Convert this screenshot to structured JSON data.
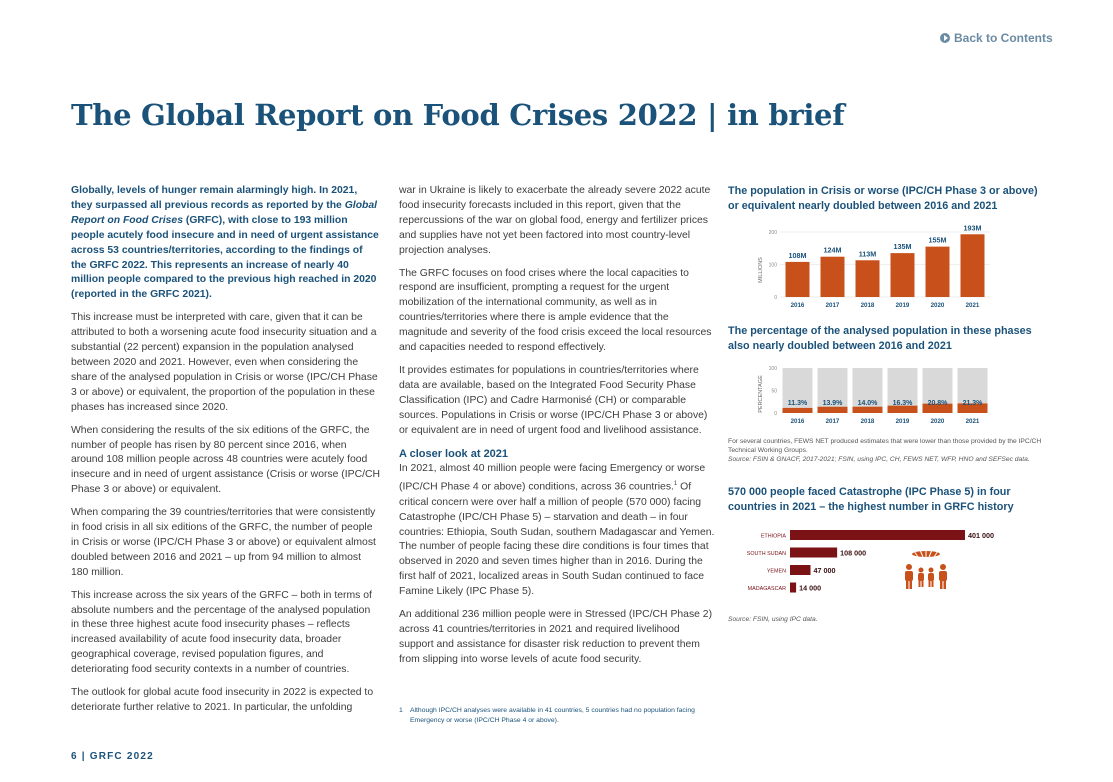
{
  "header": {
    "back_link": "Back to Contents"
  },
  "title": "The Global Report on Food Crises 2022 | in brief",
  "col1": {
    "lead_part1": "Globally, levels of hunger remain alarmingly high. In 2021, they surpassed all previous records as reported by the ",
    "lead_italic": "Global Report on Food Crises",
    "lead_part2": " (GRFC), with close to 193 million people acutely food insecure and in need of urgent assistance across 53 countries/territories, according to the findings of the GRFC 2022. This represents an increase of nearly 40 million people compared to the previous high reached in 2020 (reported in the GRFC 2021).",
    "p2": "This increase must be interpreted with care, given that it can be attributed to both a worsening acute food insecurity situation and a substantial (22 percent) expansion in the population analysed between 2020 and 2021. However, even when considering the share of the analysed population in Crisis or worse (IPC/CH Phase 3 or above) or equivalent, the proportion of the population in these phases has increased since 2020.",
    "p3": "When considering the results of the six editions of the GRFC, the number of people has risen by 80 percent since 2016, when around 108 million people across 48 countries were acutely food insecure and in need of urgent assistance (Crisis or worse (IPC/CH Phase 3 or above) or equivalent.",
    "p4": "When comparing the 39 countries/territories that were consistently in food crisis in all six editions of the GRFC, the number of people in Crisis or worse (IPC/CH Phase 3 or above) or equivalent almost doubled between 2016 and 2021 – up from 94 million to almost 180 million.",
    "p5": "This increase across the six years of the GRFC – both in terms of absolute numbers and the percentage of the analysed population in these three highest acute food insecurity phases – reflects increased availability of acute food insecurity data, broader geographical coverage, revised population figures, and deteriorating food security contexts in a number of countries.",
    "p6": "The outlook for global acute food insecurity in 2022 is expected to deteriorate further relative to 2021. In particular, the unfolding"
  },
  "col2": {
    "p1": "war in Ukraine is likely to exacerbate the already severe 2022 acute food insecurity forecasts included in this report, given that the repercussions of the war on global food, energy and fertilizer prices and supplies have not yet been factored into most country-level projection analyses.",
    "p2": "The GRFC focuses on food crises where the local capacities to respond are insufficient, prompting a request for the urgent mobilization of the international community, as well as in countries/territories where there is ample evidence that the magnitude and severity of the food crisis exceed the local resources and capacities needed to respond effectively.",
    "p3": "It provides estimates for populations in countries/territories where data are available, based on the Integrated Food Security Phase Classification (IPC) and Cadre Harmonisé (CH) or comparable sources. Populations in Crisis or worse (IPC/CH Phase 3 or above) or equivalent are in need of urgent food and livelihood assistance.",
    "subhead": "A closer look at 2021",
    "p4": "In 2021, almost 40 million people were facing Emergency or worse (IPC/CH Phase 4 or above) conditions, across 36 countries.",
    "p4_sup": "1",
    "p4b": " Of critical concern were over half a million of people (570 000) facing Catastrophe (IPC/CH Phase 5) – starvation and death – in four countries: Ethiopia, South Sudan, southern Madagascar and Yemen. The number of people facing these dire conditions is four times that observed in 2020 and seven times higher than in 2016. During the first half of 2021, localized areas in South Sudan continued to face Famine Likely (IPC Phase 5).",
    "p5": "An additional 236 million people were in Stressed (IPC/CH Phase 2) across 41 countries/territories in 2021 and required livelihood support and assistance for disaster risk reduction to prevent them from slipping into worse levels of acute food security."
  },
  "footnote": {
    "num": "1",
    "text": "Although IPC/CH analyses were available in 41 countries, 5 countries had no population facing Emergency or worse (IPC/CH Phase 4 or above)."
  },
  "footer": "6 | GRFC 2022",
  "colors": {
    "orange": "#c8501a",
    "grey": "#d9d9d9",
    "darkred": "#7a1216",
    "blue": "#1b5279"
  },
  "chart_data": [
    {
      "type": "bar",
      "title": "The population in Crisis or worse (IPC/CH Phase 3 or above) or equivalent nearly doubled between 2016 and 2021",
      "categories": [
        "2016",
        "2017",
        "2018",
        "2019",
        "2020",
        "2021"
      ],
      "values": [
        108,
        124,
        113,
        135,
        155,
        193
      ],
      "labels": [
        "108M",
        "124M",
        "113M",
        "135M",
        "155M",
        "193M"
      ],
      "ylabel": "MILLIONS",
      "yticks": [
        "0",
        "100",
        "200"
      ],
      "ylim": [
        0,
        200
      ]
    },
    {
      "type": "bar",
      "title": "The percentage of the analysed population in these phases also nearly doubled between 2016 and 2021",
      "categories": [
        "2016",
        "2017",
        "2018",
        "2019",
        "2020",
        "2021"
      ],
      "values": [
        11.3,
        13.9,
        14.0,
        16.3,
        20.8,
        21.3
      ],
      "labels": [
        "11.3%",
        "13.9%",
        "14.0%",
        "16.3%",
        "20.8%",
        "21.3%"
      ],
      "ylabel": "PERCENTAGE",
      "yticks": [
        "0",
        "50",
        "100"
      ],
      "ylim": [
        0,
        100
      ],
      "note": "For several countries, FEWS NET produced estimates that were lower than those provided by the IPC/CH Technical Working Groups.",
      "source": "Source: FSIN & GNACF, 2017-2021; FSIN, using IPC, CH, FEWS NET, WFP, HNO and SEFSec data."
    },
    {
      "type": "bar",
      "orientation": "horizontal",
      "title": "570 000 people faced Catastrophe (IPC Phase 5) in four countries in 2021 – the highest number in GRFC history",
      "categories": [
        "ETHIOPIA",
        "SOUTH SUDAN",
        "YEMEN",
        "MADAGASCAR"
      ],
      "values": [
        401000,
        108000,
        47000,
        14000
      ],
      "labels": [
        "401 000",
        "108 000",
        "47 000",
        "14 000"
      ],
      "source": "Source: FSIN, using IPC data."
    }
  ]
}
